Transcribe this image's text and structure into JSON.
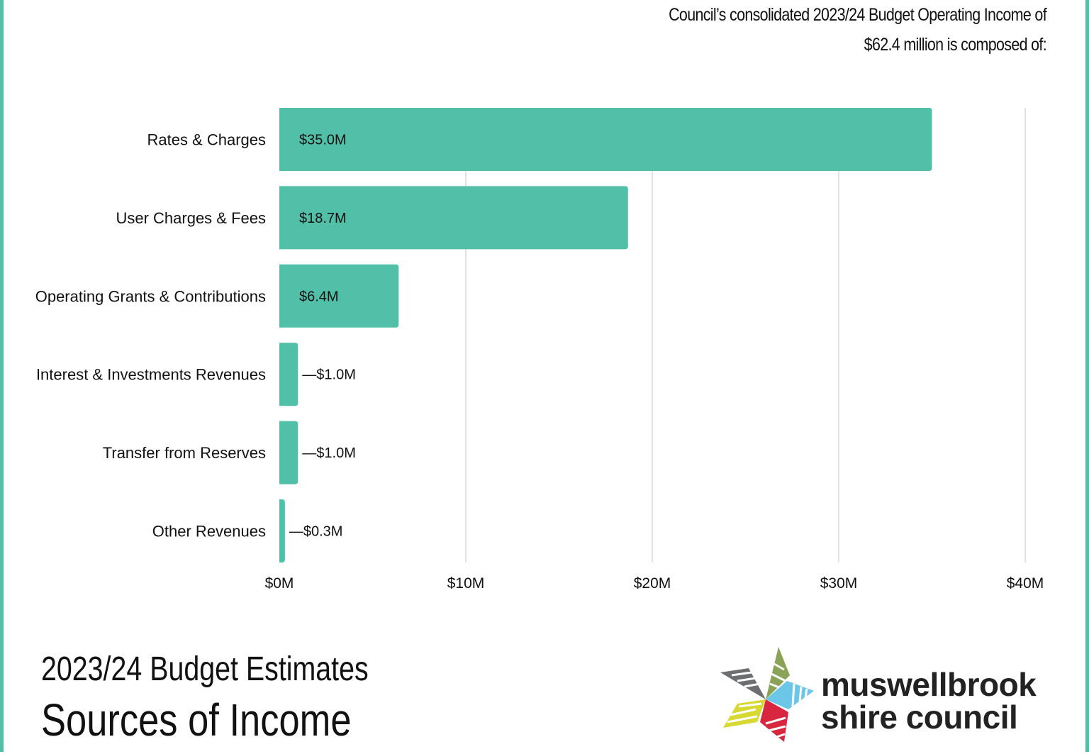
{
  "intro": {
    "line1": "Council’s consolidated 2023/24 Budget Operating Income of",
    "line2": "$62.4 million is composed of:"
  },
  "footer": {
    "title_line1": "2023/24 Budget Estimates",
    "title_line2": "Sources of Income"
  },
  "logo": {
    "line1": "muswellbrook",
    "line2": "shire council",
    "icon": "star-petal-logo-icon"
  },
  "colors": {
    "bar": "#52c0a8",
    "frame": "#52c0a8",
    "grid": "#d9d9d9",
    "logo_grey": "#6d6e70",
    "logo_olive": "#8aa356",
    "logo_blue": "#6cc6e8",
    "logo_red": "#d7263d",
    "logo_yellow": "#d7d832"
  },
  "chart_data": {
    "type": "bar",
    "orientation": "horizontal",
    "categories": [
      "Rates & Charges",
      "User Charges & Fees",
      "Operating Grants & Contributions",
      "Interest & Investments Revenues",
      "Transfer from Reserves",
      "Other Revenues"
    ],
    "values": [
      35.0,
      18.7,
      6.4,
      1.0,
      1.0,
      0.3
    ],
    "value_labels": [
      "$35.0M",
      "$18.7M",
      "$6.4M",
      "—$1.0M",
      "—$1.0M",
      "—$0.3M"
    ],
    "xlim": [
      0,
      40
    ],
    "ticks": [
      0,
      10,
      20,
      30,
      40
    ],
    "tick_labels": [
      "$0M",
      "$10M",
      "$20M",
      "$30M",
      "$40M"
    ],
    "grid": true,
    "legend": false
  }
}
